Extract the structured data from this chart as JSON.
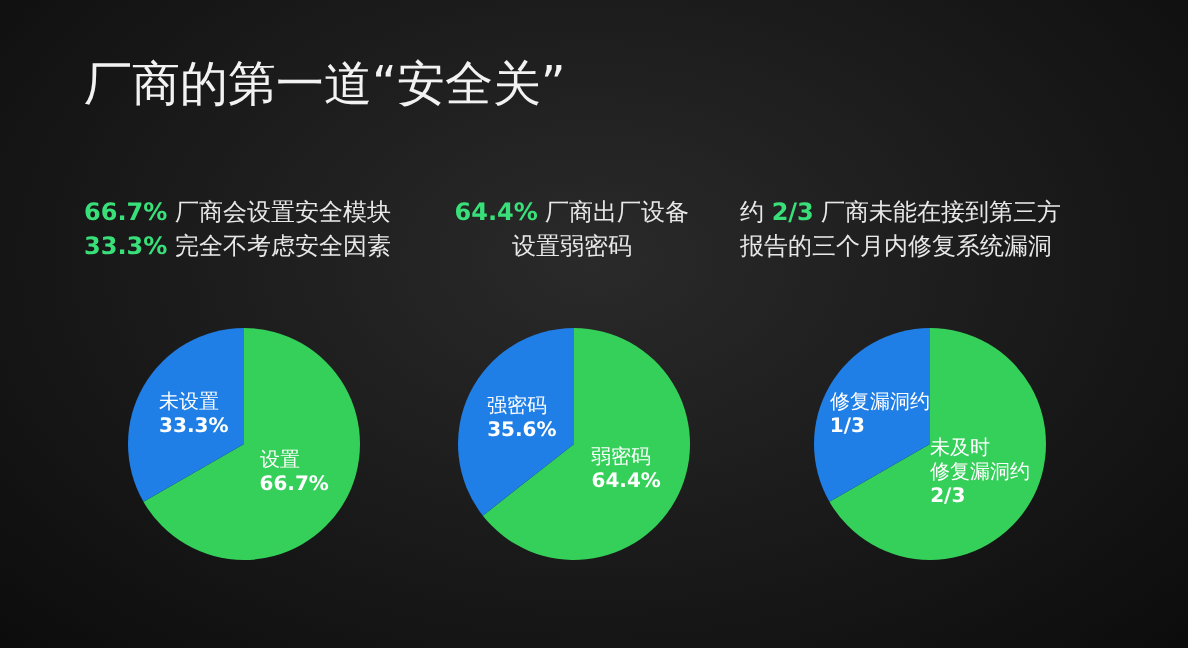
{
  "chart_data": [
    {
      "type": "pie",
      "title": "厂商的第一道“安全关”",
      "subtitle": "66.7% 厂商会设置安全模块\n33.3% 完全不考虑安全因素",
      "categories": [
        "设置",
        "未设置"
      ],
      "values": [
        66.7,
        33.3
      ],
      "value_labels": [
        "66.7%",
        "33.3%"
      ],
      "colors": [
        "#35d05a",
        "#1f7fe6"
      ],
      "legend": false
    },
    {
      "type": "pie",
      "subtitle": "64.4% 厂商出厂设备设置弱密码",
      "categories": [
        "弱密码",
        "强密码"
      ],
      "values": [
        64.4,
        35.6
      ],
      "value_labels": [
        "64.4%",
        "35.6%"
      ],
      "colors": [
        "#35d05a",
        "#1f7fe6"
      ],
      "legend": false
    },
    {
      "type": "pie",
      "subtitle": "约 2/3 厂商未能在接到第三方报告的三个月内修复系统漏洞",
      "categories": [
        "未及时修复漏洞约",
        "修复漏洞约"
      ],
      "values": [
        0.667,
        0.333
      ],
      "value_labels": [
        "2/3",
        "1/3"
      ],
      "colors": [
        "#35d05a",
        "#1f7fe6"
      ],
      "legend": false
    }
  ]
}
